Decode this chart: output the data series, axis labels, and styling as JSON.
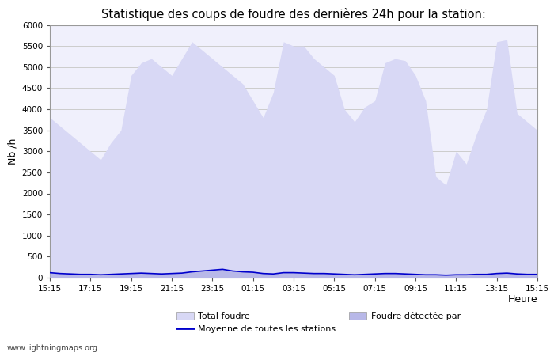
{
  "title": "Statistique des coups de foudre des dernières 24h pour la station:",
  "xlabel": "Heure",
  "ylabel": "Nb /h",
  "xlabels": [
    "15:15",
    "17:15",
    "19:15",
    "21:15",
    "23:15",
    "01:15",
    "03:15",
    "05:15",
    "07:15",
    "09:15",
    "11:15",
    "13:15",
    "15:15"
  ],
  "ylim": [
    0,
    6000
  ],
  "yticks": [
    0,
    500,
    1000,
    1500,
    2000,
    2500,
    3000,
    3500,
    4000,
    4500,
    5000,
    5500,
    6000
  ],
  "fill_color": "#d8d8f5",
  "line_color": "#0000cc",
  "bg_color": "#ffffff",
  "plot_bg_color": "#f0f0fc",
  "grid_color": "#cccccc",
  "border_color": "#999999",
  "watermark": "www.lightningmaps.org",
  "legend_total": "Total foudre",
  "legend_moyenne": "Moyenne de toutes les stations",
  "legend_detectee": "Foudre détectée par",
  "x_values": [
    0,
    1,
    2,
    3,
    4,
    5,
    6,
    7,
    8,
    9,
    10,
    11,
    12,
    13,
    14,
    15,
    16,
    17,
    18,
    19,
    20,
    21,
    22,
    23,
    24,
    25,
    26,
    27,
    28,
    29,
    30,
    31,
    32,
    33,
    34,
    35,
    36,
    37,
    38,
    39,
    40,
    41,
    42,
    43,
    44,
    45,
    46,
    47,
    48
  ],
  "total_foudre": [
    3800,
    3600,
    3400,
    3200,
    3000,
    2800,
    3200,
    3500,
    4800,
    5100,
    5200,
    5000,
    4800,
    5200,
    5600,
    5400,
    5200,
    5000,
    4800,
    4600,
    4200,
    3800,
    4400,
    5600,
    5500,
    5500,
    5200,
    5000,
    4800,
    4000,
    3700,
    4050,
    4200,
    5100,
    5200,
    5150,
    4800,
    4200,
    2400,
    2200,
    3000,
    2700,
    3400,
    4000,
    5600,
    5650,
    3900,
    3700,
    3500
  ],
  "moyenne": [
    120,
    100,
    90,
    80,
    80,
    70,
    80,
    90,
    100,
    110,
    100,
    90,
    100,
    110,
    140,
    160,
    180,
    200,
    160,
    140,
    130,
    100,
    90,
    120,
    120,
    110,
    100,
    100,
    90,
    80,
    70,
    80,
    90,
    100,
    100,
    90,
    80,
    70,
    70,
    60,
    70,
    70,
    80,
    80,
    100,
    110,
    90,
    80,
    80
  ]
}
